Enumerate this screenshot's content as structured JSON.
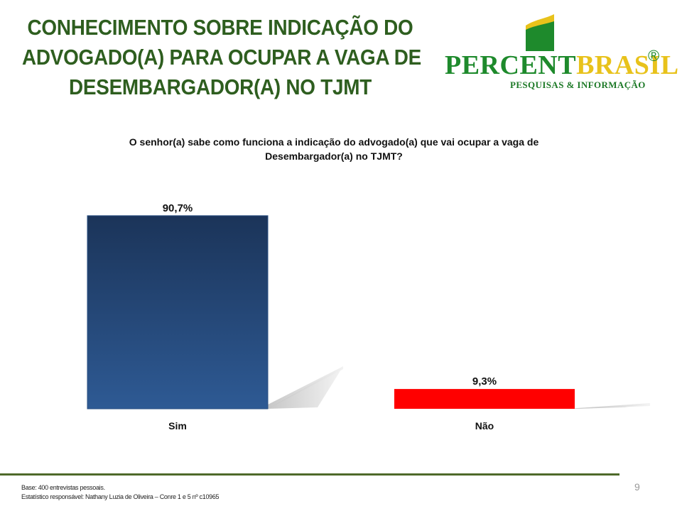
{
  "slide": {
    "title_lines": [
      "CONHECIMENTO SOBRE INDICAÇÃO DO",
      "ADVOGADO(A) PARA OCUPAR A VAGA DE",
      "DESEMBARGADOR(A) NO TJMT"
    ],
    "page_number": "9"
  },
  "logo": {
    "word_part1": "PERCENT",
    "word_part2": "BRASIL",
    "registered_mark": "®",
    "tagline": "PESQUISAS & INFORMAÇÃO",
    "colors": {
      "green": "#1e8a2c",
      "yellow": "#e8c21b"
    }
  },
  "footer": {
    "base_note": "Base: 400 entrevistas pessoais.",
    "statistician_note": "Estatístico responsável: Nathany Luzia de Oliveira – Conre 1 e 5 nº c10965"
  },
  "chart_data": {
    "type": "bar",
    "title": "O senhor(a) sabe como funciona a indicação do advogado(a) que vai ocupar a vaga de Desembargador(a) no TJMT?",
    "categories": [
      "Sim",
      "Não"
    ],
    "values": [
      90.7,
      9.3
    ],
    "value_labels": [
      "90,7%",
      "9,3%"
    ],
    "unit": "%",
    "ylim": [
      0,
      100
    ],
    "grid": false,
    "legend": "none",
    "colors": [
      "#2e5a94",
      "#ff0000"
    ],
    "gradient_top": "#1b3459"
  }
}
